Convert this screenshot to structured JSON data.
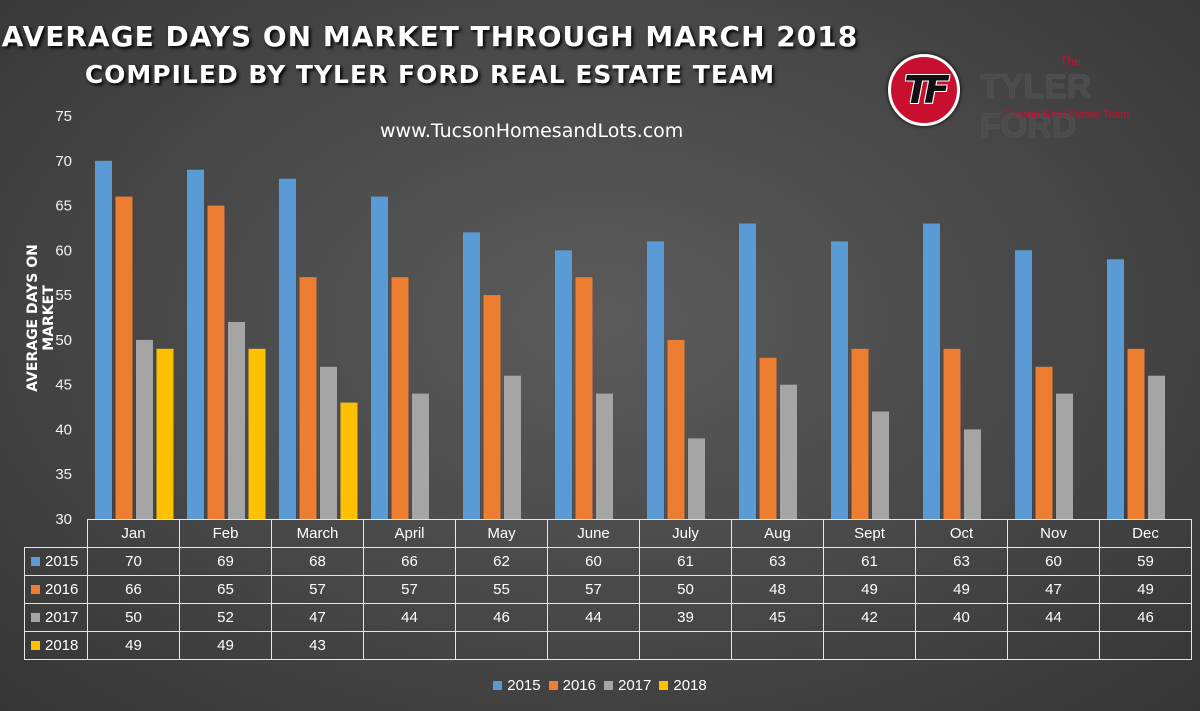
{
  "title": {
    "line1": "AVERAGE DAYS ON MARKET THROUGH MARCH 2018",
    "line2": "COMPILED BY TYLER FORD REAL ESTATE TEAM"
  },
  "website": "www.TucsonHomesandLots.com",
  "logo": {
    "mark": "TF",
    "the": "The",
    "name": "TYLER FORD",
    "tagline": "Tucson Real Estate Team"
  },
  "colors": {
    "2015": "#5b9bd5",
    "2016": "#ed7d31",
    "2017": "#a5a5a5",
    "2018": "#ffc000"
  },
  "chart_data": {
    "type": "bar",
    "title": "AVERAGE DAYS ON MARKET THROUGH MARCH 2018",
    "subtitle": "COMPILED BY TYLER FORD REAL ESTATE TEAM",
    "xlabel": "",
    "ylabel": "AVERAGE DAYS ON MARKET",
    "ylim": [
      30,
      75
    ],
    "yticks": [
      30,
      35,
      40,
      45,
      50,
      55,
      60,
      65,
      70,
      75
    ],
    "grid": false,
    "legend": "bottom",
    "categories": [
      "Jan",
      "Feb",
      "March",
      "April",
      "May",
      "June",
      "July",
      "Aug",
      "Sept",
      "Oct",
      "Nov",
      "Dec"
    ],
    "series": [
      {
        "name": "2015",
        "values": [
          70,
          69,
          68,
          66,
          62,
          60,
          61,
          63,
          61,
          63,
          60,
          59
        ]
      },
      {
        "name": "2016",
        "values": [
          66,
          65,
          57,
          57,
          55,
          57,
          50,
          48,
          49,
          49,
          47,
          49
        ]
      },
      {
        "name": "2017",
        "values": [
          50,
          52,
          47,
          44,
          46,
          44,
          39,
          45,
          42,
          40,
          44,
          46
        ]
      },
      {
        "name": "2018",
        "values": [
          49,
          49,
          43,
          null,
          null,
          null,
          null,
          null,
          null,
          null,
          null,
          null
        ]
      }
    ],
    "data_table": true
  }
}
